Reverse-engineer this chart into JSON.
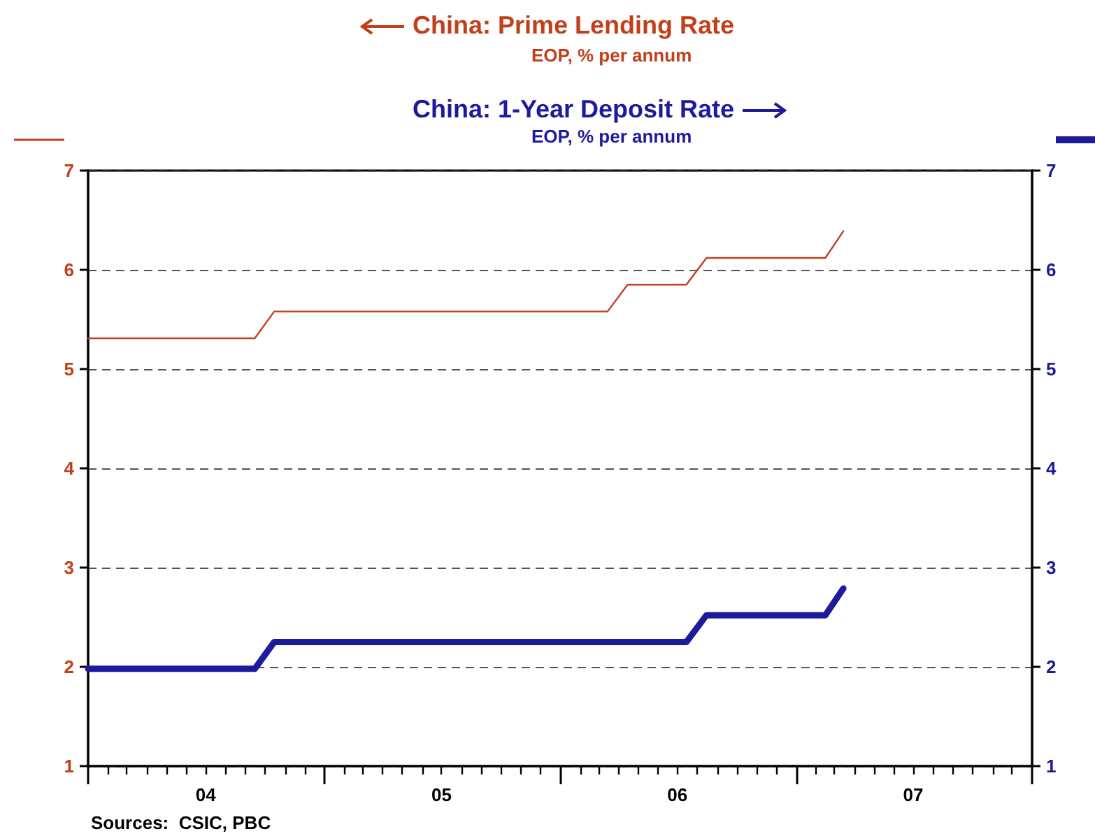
{
  "chart_data": {
    "type": "line",
    "legend": "top",
    "grid": "y",
    "line_style": "solid",
    "marker": "none",
    "xlim": [
      "2004-01-01",
      "2008-01-01"
    ],
    "xticks": [
      {
        "value": "2004-01-01",
        "label": null
      },
      {
        "value": "2004-02-01",
        "label": null
      },
      {
        "value": "2004-03-01",
        "label": null
      },
      {
        "value": "2004-04-01",
        "label": null
      },
      {
        "value": "2004-05-01",
        "label": null
      },
      {
        "value": "2004-06-01",
        "label": null
      },
      {
        "value": "2004-07-01",
        "label": "04"
      },
      {
        "value": "2004-08-01",
        "label": null
      },
      {
        "value": "2004-09-01",
        "label": null
      },
      {
        "value": "2004-10-01",
        "label": null
      },
      {
        "value": "2004-11-01",
        "label": null
      },
      {
        "value": "2004-12-01",
        "label": null
      },
      {
        "value": "2005-01-01",
        "label": null
      },
      {
        "value": "2005-02-01",
        "label": null
      },
      {
        "value": "2005-03-01",
        "label": null
      },
      {
        "value": "2005-04-01",
        "label": null
      },
      {
        "value": "2005-05-01",
        "label": null
      },
      {
        "value": "2005-06-01",
        "label": null
      },
      {
        "value": "2005-07-01",
        "label": "05"
      },
      {
        "value": "2005-08-01",
        "label": null
      },
      {
        "value": "2005-09-01",
        "label": null
      },
      {
        "value": "2005-10-01",
        "label": null
      },
      {
        "value": "2005-11-01",
        "label": null
      },
      {
        "value": "2005-12-01",
        "label": null
      },
      {
        "value": "2006-01-01",
        "label": null
      },
      {
        "value": "2006-02-01",
        "label": null
      },
      {
        "value": "2006-03-01",
        "label": null
      },
      {
        "value": "2006-04-01",
        "label": null
      },
      {
        "value": "2006-05-01",
        "label": null
      },
      {
        "value": "2006-06-01",
        "label": null
      },
      {
        "value": "2006-07-01",
        "label": "06"
      },
      {
        "value": "2006-08-01",
        "label": null
      },
      {
        "value": "2006-09-01",
        "label": null
      },
      {
        "value": "2006-10-01",
        "label": null
      },
      {
        "value": "2006-11-01",
        "label": null
      },
      {
        "value": "2006-12-01",
        "label": null
      },
      {
        "value": "2007-01-01",
        "label": null
      },
      {
        "value": "2007-02-01",
        "label": null
      },
      {
        "value": "2007-03-01",
        "label": null
      },
      {
        "value": "2007-04-01",
        "label": null
      },
      {
        "value": "2007-05-01",
        "label": null
      },
      {
        "value": "2007-06-01",
        "label": null
      },
      {
        "value": "2007-07-01",
        "label": "07"
      },
      {
        "value": "2007-08-01",
        "label": null
      },
      {
        "value": "2007-09-01",
        "label": null
      },
      {
        "value": "2007-10-01",
        "label": null
      },
      {
        "value": "2007-11-01",
        "label": null
      },
      {
        "value": "2007-12-01",
        "label": null
      },
      {
        "value": "2008-01-01",
        "label": null
      }
    ],
    "ylim": [
      1,
      7
    ],
    "yticks": [
      1,
      2,
      3,
      4,
      5,
      6,
      7
    ],
    "y2lim": [
      1,
      7
    ],
    "y2ticks": [
      1,
      2,
      3,
      4,
      5,
      6,
      7
    ],
    "series": [
      {
        "name": "China: Prime Lending Rate",
        "color": "#c0401c",
        "x": [
          "2004-01-01",
          "2004-09-15",
          "2004-10-15",
          "2006-03-15",
          "2006-04-15",
          "2006-07-15",
          "2006-08-15",
          "2007-02-15",
          "2007-03-15"
        ],
        "values": [
          5.31,
          5.31,
          5.58,
          5.58,
          5.85,
          5.85,
          6.12,
          6.12,
          6.39
        ]
      },
      {
        "name": "China: 1-Year Deposit Rate",
        "color": "#1e1a9c",
        "axis": "y2",
        "x": [
          "2004-01-01",
          "2004-09-15",
          "2004-10-15",
          "2006-07-15",
          "2006-08-15",
          "2007-02-15",
          "2007-03-15"
        ],
        "values": [
          1.98,
          1.98,
          2.25,
          2.25,
          2.52,
          2.52,
          2.79
        ]
      }
    ],
    "annotations": [
      "EOP, % per annum",
      "EOP, % per annum",
      "Sources:  CSIC, PBC"
    ]
  }
}
